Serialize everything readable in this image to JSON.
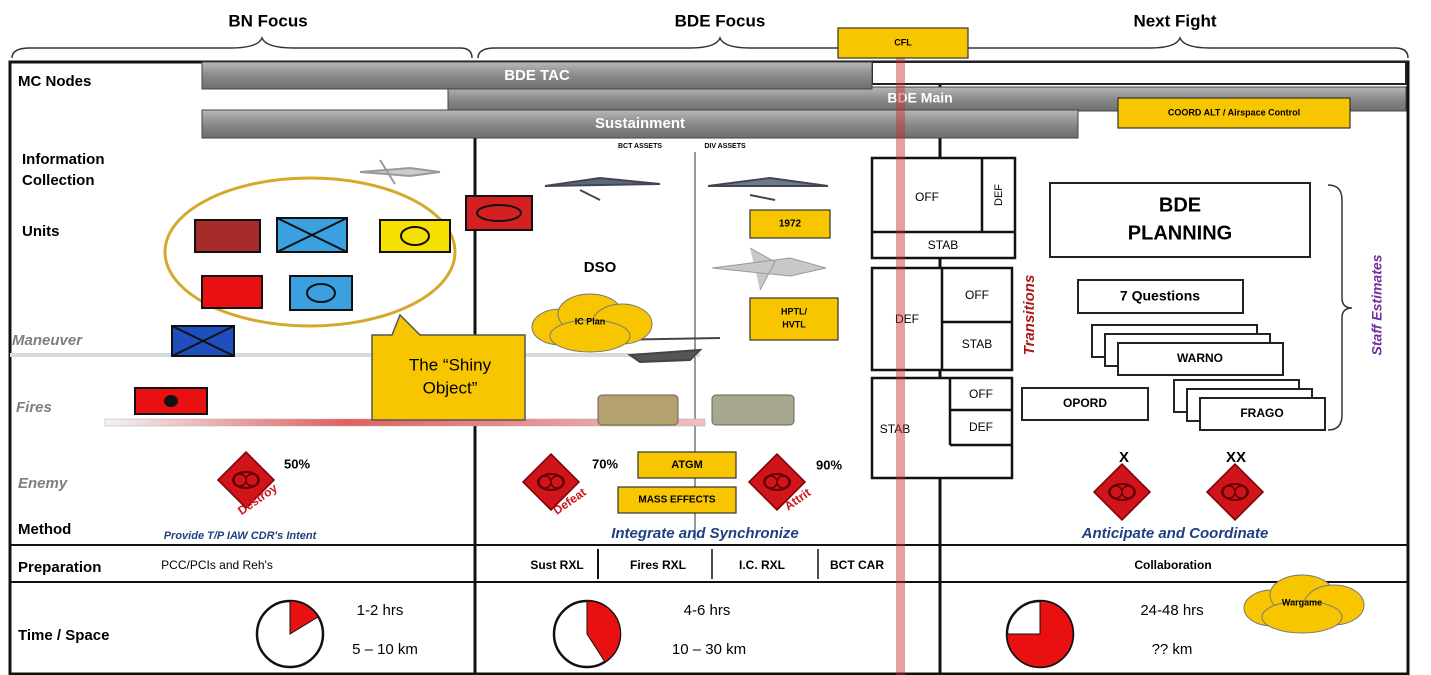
{
  "header": {
    "columns": [
      "BN Focus",
      "BDE Focus",
      "Next Fight"
    ],
    "cfl": "CFL"
  },
  "row_labels": {
    "mc_nodes": "MC Nodes",
    "information_collection": [
      "Information",
      "Collection"
    ],
    "units": "Units",
    "maneuver": "Maneuver",
    "fires": "Fires",
    "enemy": "Enemy",
    "method": "Method",
    "preparation": "Preparation",
    "time_space": "Time / Space"
  },
  "nodes": {
    "bde_tac": "BDE TAC",
    "bde_main": "BDE Main",
    "sustainment": "Sustainment",
    "coord_alt": "COORD ALT / Airspace Control"
  },
  "bn_focus": {
    "shiny_object": [
      "The “Shiny",
      "Object”"
    ],
    "enemy_percent": "50%",
    "enemy_effect": "Destroy",
    "method": "Provide T/P IAW CDR's Intent",
    "preparation": "PCC/PCIs and Reh's",
    "time": "1-2 hrs",
    "space": "5 – 10 km"
  },
  "bde_focus": {
    "bct_assets": "BCT ASSETS",
    "div_assets": "DIV ASSETS",
    "dso": "DSO",
    "ic_plan": "IC Plan",
    "box_1972": "1972",
    "hptl": [
      "HPTL/",
      "HVTL"
    ],
    "enemy_1_percent": "70%",
    "enemy_1_effect": "Defeat",
    "atgm": "ATGM",
    "mass_effects": "MASS EFFECTS",
    "enemy_2_percent": "90%",
    "enemy_2_effect": "Attrit",
    "method": "Integrate and Synchronize",
    "preparation": [
      "Sust RXL",
      "Fires RXL",
      "I.C. RXL",
      "BCT CAR"
    ],
    "time": "4-6 hrs",
    "space": "10 – 30 km"
  },
  "transitions": {
    "label": "Transitions",
    "group_1": {
      "off": "OFF",
      "def": "DEF",
      "stab": "STAB"
    },
    "group_2": {
      "def": "DEF",
      "off": "OFF",
      "stab": "STAB"
    },
    "group_3": {
      "stab": "STAB",
      "off": "OFF",
      "def": "DEF"
    }
  },
  "next_fight": {
    "planning": [
      "BDE",
      "PLANNING"
    ],
    "questions": "7 Questions",
    "warno": "WARNO",
    "opord": "OPORD",
    "frago": "FRAGO",
    "staff_estimates": "Staff Estimates",
    "echelon_1": "X",
    "echelon_2": "XX",
    "method": "Anticipate and Coordinate",
    "preparation": "Collaboration",
    "wargame": "Wargame",
    "time": "24-48 hrs",
    "space": "?? km"
  }
}
